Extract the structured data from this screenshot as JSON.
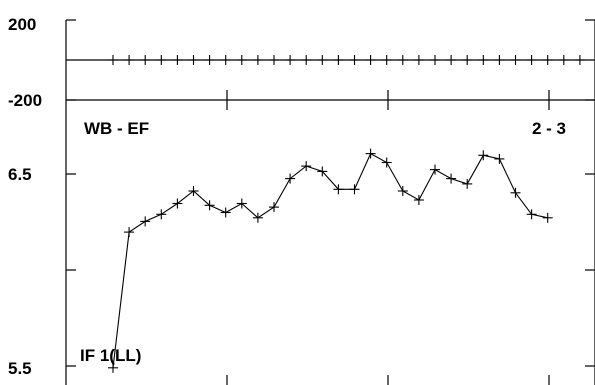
{
  "chart_data": [
    {
      "type": "line",
      "panel": "top",
      "y_tick_labels": [
        "200",
        "-200"
      ],
      "ylim": [
        -200,
        200
      ],
      "marker": "plus",
      "series": [
        {
          "values": [
            0,
            0,
            0,
            0,
            0,
            0,
            0,
            0,
            0,
            0,
            0,
            0,
            0,
            0,
            0,
            0,
            0,
            0,
            0,
            0,
            0,
            0,
            0,
            0,
            0,
            0,
            0,
            0,
            0,
            0
          ]
        }
      ]
    },
    {
      "type": "line",
      "panel": "bottom",
      "labels": {
        "left": "WB - EF",
        "right": "2 - 3",
        "bottom": "IF 1(LL)"
      },
      "y_tick_labels": [
        "6.5",
        "5.5"
      ],
      "ylim": [
        5.48,
        6.97
      ],
      "marker": "plus",
      "series": [
        {
          "values": [
            5.47,
            6.23,
            6.29,
            6.33,
            6.39,
            6.46,
            6.38,
            6.34,
            6.39,
            6.31,
            6.37,
            6.53,
            6.6,
            6.57,
            6.47,
            6.47,
            6.67,
            6.62,
            6.46,
            6.41,
            6.58,
            6.53,
            6.5,
            6.66,
            6.64,
            6.45,
            6.33,
            6.31
          ]
        }
      ]
    }
  ]
}
